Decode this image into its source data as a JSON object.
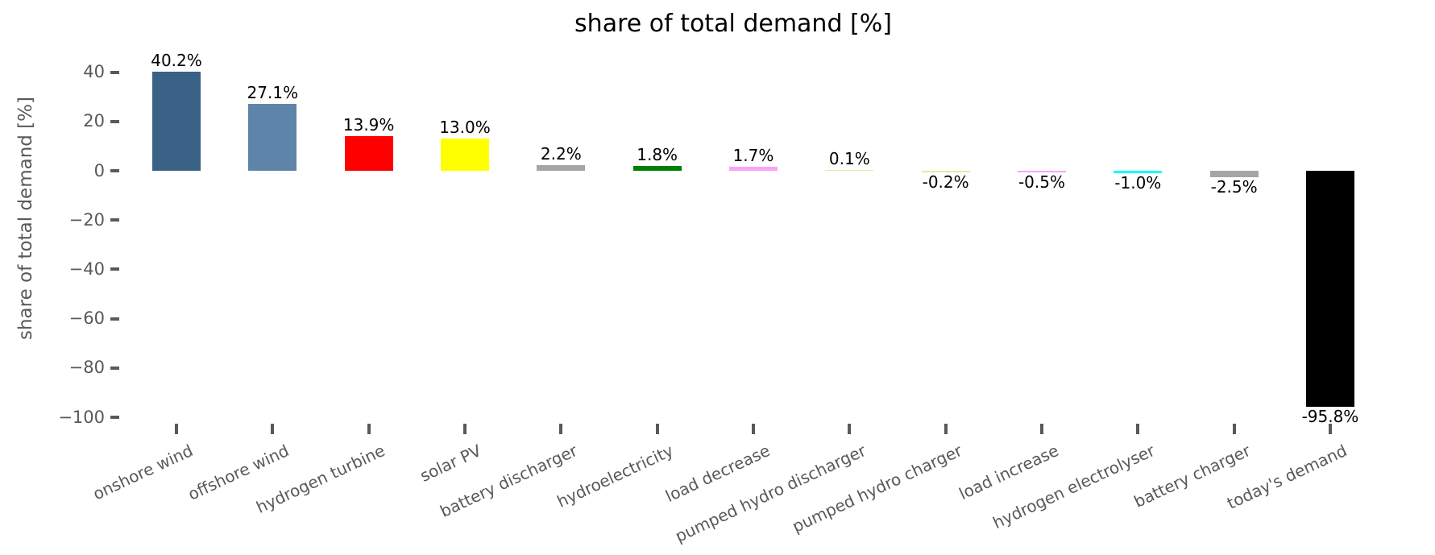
{
  "chart_data": {
    "type": "bar",
    "title": "share of total demand [%]",
    "xlabel": "",
    "ylabel": "share of total demand [%]",
    "ylim": [
      -102,
      46
    ],
    "grid": false,
    "legend": "none",
    "yticks": [
      {
        "value": 40,
        "label": "40"
      },
      {
        "value": 20,
        "label": "20"
      },
      {
        "value": 0,
        "label": "0"
      },
      {
        "value": -20,
        "label": "−20"
      },
      {
        "value": -40,
        "label": "−40"
      },
      {
        "value": -60,
        "label": "−60"
      },
      {
        "value": -80,
        "label": "−80"
      },
      {
        "value": -100,
        "label": "−100"
      }
    ],
    "categories": [
      "onshore wind",
      "offshore wind",
      "hydrogen turbine",
      "solar PV",
      "battery discharger",
      "hydroelectricity",
      "load decrease",
      "pumped hydro discharger",
      "pumped hydro charger",
      "load increase",
      "hydrogen electrolyser",
      "battery charger",
      "today's demand"
    ],
    "values": [
      40.2,
      27.1,
      13.9,
      13.0,
      2.2,
      1.8,
      1.7,
      0.1,
      -0.2,
      -0.5,
      -1.0,
      -2.5,
      -95.8
    ],
    "value_labels": [
      "40.2%",
      "27.1%",
      "13.9%",
      "13.0%",
      "2.2%",
      "1.8%",
      "1.7%",
      "0.1%",
      "-0.2%",
      "-0.5%",
      "-1.0%",
      "-2.5%",
      "-95.8%"
    ],
    "slugs": [
      "onshore-wind",
      "offshore-wind",
      "hydrogen-turbine",
      "solar-pv",
      "battery-discharger",
      "hydroelectricity",
      "load-decrease",
      "pumped-hydro-discharger",
      "pumped-hydro-charger",
      "load-increase",
      "hydrogen-electrolyser",
      "battery-charger",
      "todays-demand"
    ],
    "colors": [
      "#3A6186",
      "#5E85A9",
      "#FF0000",
      "#FFFF00",
      "#A5A5A5",
      "#008000",
      "#F8A4F8",
      "#D8F0A5",
      "#D8F0A5",
      "#F8A4F8",
      "#00FFFF",
      "#A5A5A5",
      "#000000"
    ],
    "text_colors": {
      "title": "#000000",
      "axis_labels": "#595959",
      "value_labels": "#000000"
    }
  }
}
